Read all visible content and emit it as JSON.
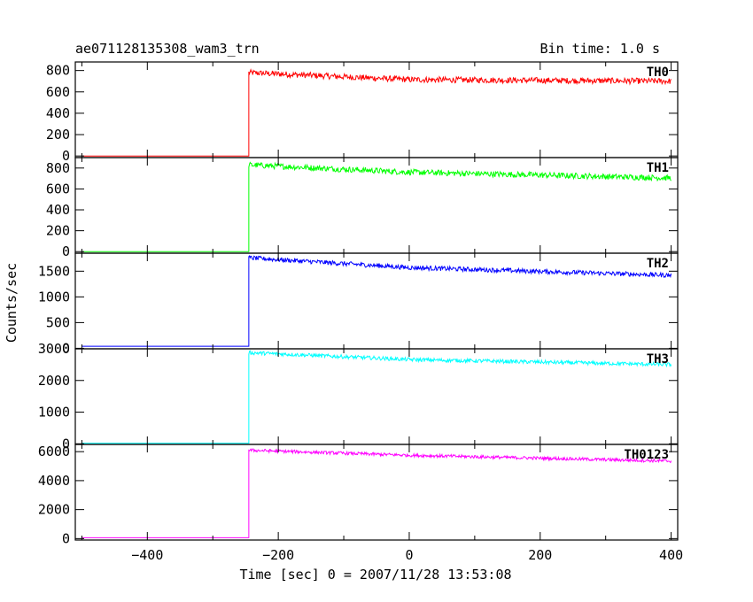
{
  "chart_data": {
    "type": "line",
    "title": "ae071128135308_wam3_trn",
    "bin_time": "Bin time: 1.0 s",
    "xlabel": "Time [sec] 0 = 2007/11/28 13:53:08",
    "ylabel": "Counts/sec",
    "xlim": [
      -510,
      410
    ],
    "x_ticks": [
      -400,
      -200,
      0,
      200,
      400
    ],
    "x_tick_labels": [
      "−400",
      "−200",
      "0",
      "200",
      "400"
    ],
    "grid": false,
    "panels": [
      {
        "name": "TH0",
        "color": "#ff0000",
        "ylim": [
          -15,
          880
        ],
        "y_ticks": [
          0,
          200,
          400,
          600,
          800
        ],
        "y_tick_labels": [
          "0",
          "200",
          "400",
          "600",
          "800"
        ],
        "baseline": 0,
        "onset": -245,
        "profile": [
          [
            -245,
            780
          ],
          [
            0,
            715
          ],
          [
            400,
            700
          ]
        ],
        "noise": 28
      },
      {
        "name": "TH1",
        "color": "#00ff00",
        "ylim": [
          -15,
          900
        ],
        "y_ticks": [
          0,
          200,
          400,
          600,
          800
        ],
        "y_tick_labels": [
          "0",
          "200",
          "400",
          "600",
          "800"
        ],
        "baseline": 0,
        "onset": -245,
        "profile": [
          [
            -245,
            830
          ],
          [
            0,
            760
          ],
          [
            400,
            705
          ]
        ],
        "noise": 28
      },
      {
        "name": "TH2",
        "color": "#0000ff",
        "ylim": [
          -10,
          1850
        ],
        "y_ticks": [
          0,
          500,
          1000,
          1500
        ],
        "y_tick_labels": [
          "0",
          "500",
          "1000",
          "1500"
        ],
        "baseline": 40,
        "onset": -245,
        "profile": [
          [
            -245,
            1760
          ],
          [
            0,
            1570
          ],
          [
            400,
            1420
          ]
        ],
        "noise": 45
      },
      {
        "name": "TH3",
        "color": "#00ffff",
        "ylim": [
          -20,
          3000
        ],
        "y_ticks": [
          0,
          1000,
          2000,
          3000
        ],
        "y_tick_labels": [
          "0",
          "1000",
          "2000",
          "3000"
        ],
        "baseline": 20,
        "onset": -245,
        "profile": [
          [
            -245,
            2880
          ],
          [
            0,
            2660
          ],
          [
            400,
            2500
          ]
        ],
        "noise": 60
      },
      {
        "name": "TH0123",
        "color": "#ff00ff",
        "ylim": [
          -100,
          6500
        ],
        "y_ticks": [
          0,
          2000,
          4000,
          6000
        ],
        "y_tick_labels": [
          "0",
          "2000",
          "4000",
          "6000"
        ],
        "baseline": 60,
        "onset": -245,
        "profile": [
          [
            -245,
            6100
          ],
          [
            0,
            5750
          ],
          [
            400,
            5350
          ]
        ],
        "noise": 110
      }
    ]
  }
}
